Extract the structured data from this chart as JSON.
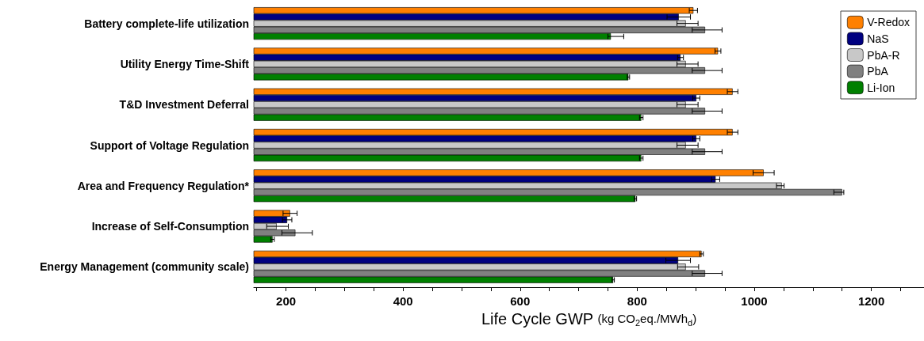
{
  "chart_data": {
    "type": "bar",
    "orientation": "horizontal",
    "xlabel": "Life Cycle GWP (kg CO$_{2}$eq./MWh$_{d}$)",
    "categories": [
      "Battery complete-life utilization",
      "Utility Energy Time-Shift",
      "T&D Investment Deferral",
      "Support of Voltage Regulation",
      "Area and Frequency Regulation*",
      "Increase of Self-Consumption",
      "Energy Management (community scale)"
    ],
    "series": [
      {
        "name": "V-Redox",
        "color": "#ff8000",
        "values": [
          896,
          938,
          963,
          963,
          1016,
          207,
          910
        ],
        "errors": [
          7,
          5,
          9,
          9,
          18,
          12,
          3
        ]
      },
      {
        "name": "NaS",
        "color": "#000080",
        "values": [
          871,
          874,
          901,
          901,
          934,
          202,
          870
        ],
        "errors": [
          20,
          5,
          6,
          6,
          7,
          8,
          21
        ]
      },
      {
        "name": "PbA-R",
        "color": "#c8c8c8",
        "values": [
          883,
          883,
          883,
          883,
          1047,
          184,
          883
        ],
        "errors": [
          [
            868,
            904
          ],
          [
            868,
            904
          ],
          [
            868,
            904
          ],
          [
            868,
            904
          ],
          [
            1038,
            1051
          ],
          [
            167,
            204
          ],
          [
            869,
            905
          ]
        ]
      },
      {
        "name": "PbA",
        "color": "#808080",
        "values": [
          916,
          916,
          916,
          916,
          1150,
          216,
          916
        ],
        "errors": [
          [
            894,
            945
          ],
          [
            894,
            945
          ],
          [
            894,
            945
          ],
          [
            894,
            945
          ],
          [
            1136,
            1153
          ],
          [
            193,
            245
          ],
          [
            894,
            945
          ]
        ]
      },
      {
        "name": "Li-Ion",
        "color": "#008000",
        "values": [
          755,
          785,
          807,
          807,
          797,
          177,
          759
        ],
        "errors": [
          [
            750,
            777
          ],
          2,
          3,
          3,
          2,
          3,
          2
        ]
      }
    ],
    "xlim": [
      145,
      1290
    ],
    "xticks": [
      {
        "value": 150,
        "label": null
      },
      200,
      {
        "value": 250,
        "label": null
      },
      {
        "value": 300,
        "label": null
      },
      {
        "value": 350,
        "label": null
      },
      400,
      {
        "value": 450,
        "label": null
      },
      {
        "value": 500,
        "label": null
      },
      {
        "value": 550,
        "label": null
      },
      600,
      {
        "value": 650,
        "label": null
      },
      {
        "value": 700,
        "label": null
      },
      {
        "value": 750,
        "label": null
      },
      800,
      {
        "value": 850,
        "label": null
      },
      {
        "value": 900,
        "label": null
      },
      {
        "value": 950,
        "label": null
      },
      1000,
      {
        "value": 1050,
        "label": null
      },
      {
        "value": 1100,
        "label": null
      },
      {
        "value": 1150,
        "label": null
      },
      1200,
      {
        "value": 1250,
        "label": null
      }
    ],
    "legend": "top right",
    "grid": false
  }
}
